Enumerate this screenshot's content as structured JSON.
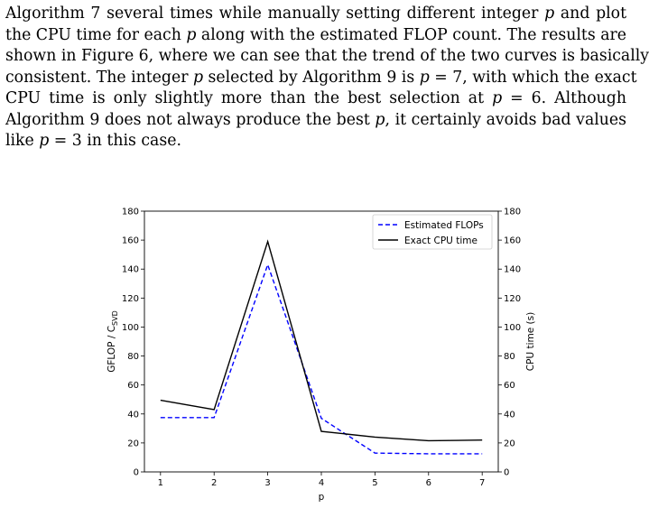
{
  "paragraph": {
    "lines": [
      "Algorithm 7 several times while manually setting different integer p and plot",
      "the CPU time for each p along with the estimated FLOP count. The results are",
      "shown in Figure 6, where we can see that the trend of the two curves is basically",
      "consistent. The integer p selected by Algorithm 9 is p = 7, with which the exact",
      "CPU time is only slightly more than the best selection at p = 6. Although",
      "Algorithm 9 does not always produce the best p, it certainly avoids bad values",
      "like p = 3 in this case."
    ]
  },
  "chart_data": {
    "type": "line",
    "x": [
      1,
      2,
      3,
      4,
      5,
      6,
      7
    ],
    "xlabel": "p",
    "ylabel_left": "GFLOP / C_SVD",
    "ylabel_right": "CPU time (s)",
    "xlim": [
      0.7,
      7.3
    ],
    "ylim_left": [
      0,
      180
    ],
    "ylim_right": [
      0,
      180
    ],
    "yticks": [
      0,
      20,
      40,
      60,
      80,
      100,
      120,
      140,
      160,
      180
    ],
    "xticks": [
      1,
      2,
      3,
      4,
      5,
      6,
      7
    ],
    "legend_position": "top-right",
    "series": [
      {
        "name": "Estimated FLOPs",
        "axis": "left",
        "style": "dashed",
        "color": "#0000ff",
        "values": [
          37.5,
          37.5,
          143,
          37,
          13,
          12.5,
          12.5
        ]
      },
      {
        "name": "Exact CPU time",
        "axis": "right",
        "style": "solid",
        "color": "#000000",
        "values": [
          49.5,
          43,
          159,
          28,
          24,
          21.5,
          22
        ]
      }
    ]
  }
}
